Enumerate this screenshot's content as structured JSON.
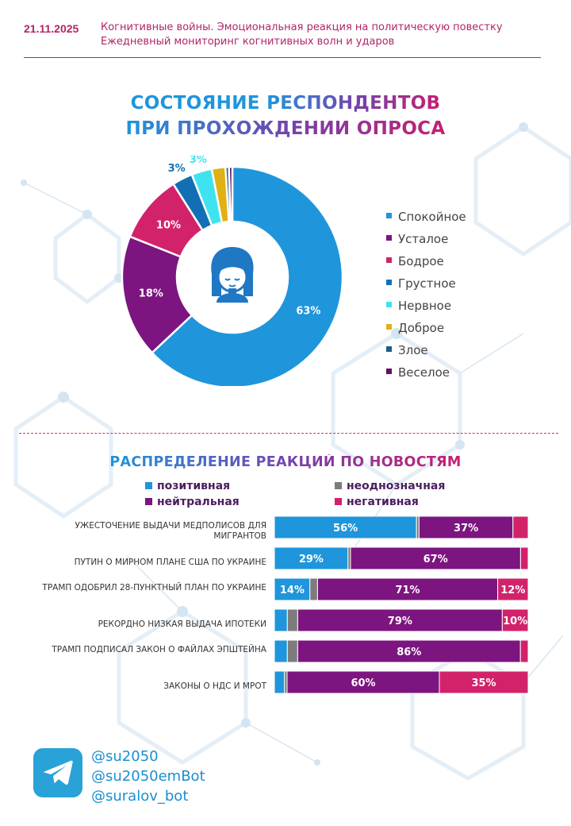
{
  "header": {
    "date": "21.11.2025",
    "subtitle_line1": "Когнитивные войны. Эмоциональная реакция на политическую повестку",
    "subtitle_line2": "Ежедневный мониторинг когнитивных волн и ударов"
  },
  "colors": {
    "blue": "#1f95dc",
    "purple": "#7c1580",
    "pink": "#d2236a",
    "blue2": "#136fb5",
    "cyan": "#3fe3ef",
    "gold": "#e0b015",
    "darkblue": "#1c5e8a",
    "darkpurple": "#5d1265",
    "gray": "#7c7c7c",
    "magenta": "#b2246b"
  },
  "charts": [
    {
      "title_line1_a": "СОСТОЯНИЕ",
      "title_line1_b": "РЕСПОНДЕНТОВ",
      "title_line2": "ПРИ ПРОХОЖДЕНИИ ОПРОСА",
      "center_icon": "person-face-icon",
      "chart_data": {
        "type": "pie",
        "donut": true,
        "legend_position": "right",
        "slices": [
          {
            "label": "Спокойное",
            "value": 63,
            "data_label": "63%",
            "color": "#1f95dc"
          },
          {
            "label": "Усталое",
            "value": 18,
            "data_label": "18%",
            "color": "#7c1580"
          },
          {
            "label": "Бодрое",
            "value": 10,
            "data_label": "10%",
            "color": "#d2236a"
          },
          {
            "label": "Грустное",
            "value": 3,
            "data_label": "3%",
            "color": "#136fb5"
          },
          {
            "label": "Нервное",
            "value": 3,
            "data_label": "3%",
            "color": "#3fe3ef"
          },
          {
            "label": "Доброе",
            "value": 2,
            "data_label": "",
            "color": "#e0b015"
          },
          {
            "label": "Злое",
            "value": 0.5,
            "data_label": "",
            "color": "#1c5e8a"
          },
          {
            "label": "Веселое",
            "value": 0.5,
            "data_label": "",
            "color": "#5d1265"
          }
        ]
      }
    },
    {
      "title": "РАСПРЕДЕЛЕНИЕ РЕАКЦИЙ ПО НОВОСТЯМ",
      "chart_data": {
        "type": "bar",
        "orientation": "horizontal",
        "stacked": true,
        "percent": true,
        "legend_position": "top",
        "categories": [
          "УЖЕСТОЧЕНИЕ ВЫДАЧИ МЕДПОЛИСОВ ДЛЯ МИГРАНТОВ",
          "ПУТИН О МИРНОМ ПЛАНЕ США ПО УКРАИНЕ",
          "ТРАМП ОДОБРИЛ 28-ПУНКТНЫЙ ПЛАН ПО УКРАИНЕ",
          "РЕКОРДНО НИЗКАЯ ВЫДАЧА ИПОТЕКИ",
          "ТРАМП ПОДПИСАЛ ЗАКОН О ФАЙЛАХ ЭПШТЕЙНА",
          "ЗАКОНЫ О НДС И МРОТ"
        ],
        "series": [
          {
            "name": "позитивная",
            "color": "#1f95dc",
            "values": [
              56,
              29,
              14,
              5,
              5,
              4
            ],
            "labels": [
              "56%",
              "29%",
              "14%",
              "",
              "",
              ""
            ]
          },
          {
            "name": "неоднозначная",
            "color": "#7c7c7c",
            "values": [
              1,
              1,
              3,
              4,
              4,
              1
            ],
            "labels": [
              "",
              "",
              "",
              "",
              "",
              ""
            ]
          },
          {
            "name": "нейтральная",
            "color": "#7c1580",
            "values": [
              37,
              67,
              71,
              79,
              86,
              60
            ],
            "labels": [
              "37%",
              "67%",
              "71%",
              "79%",
              "86%",
              "60%"
            ]
          },
          {
            "name": "негативная",
            "color": "#d2236a",
            "values": [
              6,
              3,
              12,
              10,
              3,
              35
            ],
            "labels": [
              "",
              "",
              "12%",
              "10%",
              "",
              "35%"
            ]
          }
        ]
      }
    }
  ],
  "footer": {
    "handles": [
      "@su2050",
      "@su2050emBot",
      "@suralov_bot"
    ],
    "icon": "telegram-icon"
  }
}
